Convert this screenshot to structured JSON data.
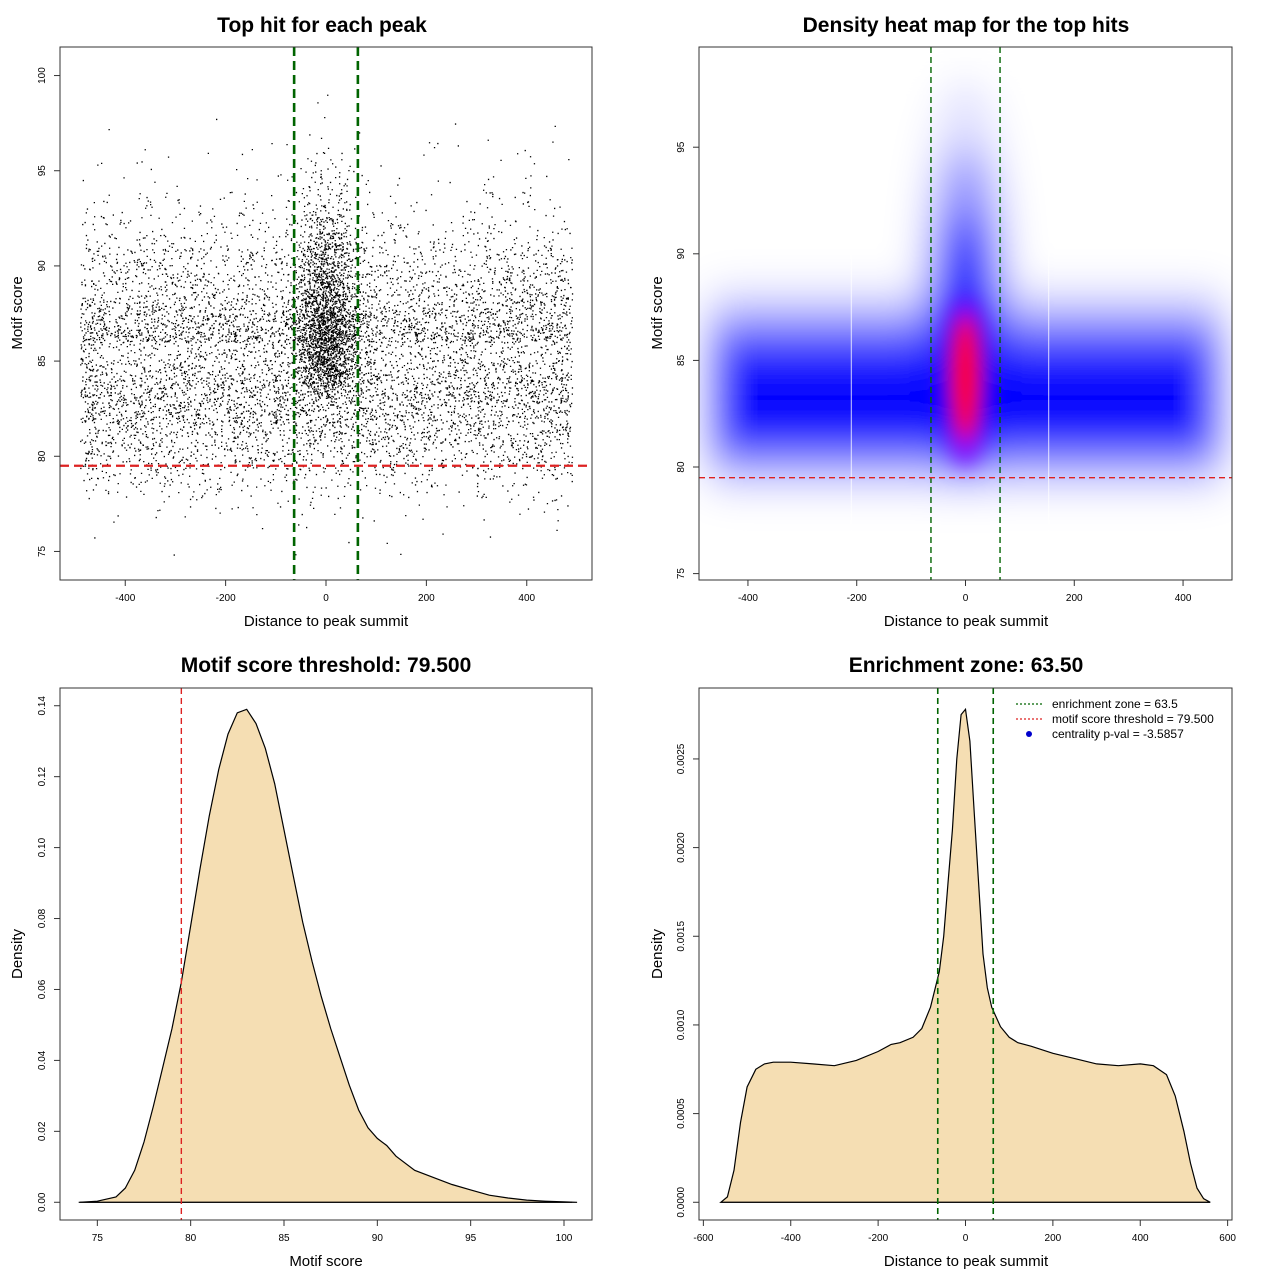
{
  "chart_data": [
    {
      "type": "scatter",
      "title": "Top hit for each peak",
      "xlabel": "Distance to peak summit",
      "ylabel": "Motif score",
      "xlim": [
        -530,
        530
      ],
      "ylim": [
        73.5,
        101.5
      ],
      "xticks": [
        -400,
        -200,
        0,
        200,
        400
      ],
      "yticks": [
        75,
        80,
        85,
        90,
        95,
        100
      ],
      "vlines": [
        -63.5,
        63.5
      ],
      "hline": 79.5,
      "points_description": "dense point cloud; background spread uniformly over -490..490 with scores mostly 77-89 (peak ~82-84); central enrichment near 0 with scores up to ~99.5"
    },
    {
      "type": "heatmap",
      "title": "Density heat map for the top hits",
      "xlabel": "Distance to peak summit",
      "ylabel": "Motif score",
      "xlim": [
        -490,
        490
      ],
      "ylim": [
        74.7,
        99.7
      ],
      "xticks": [
        -400,
        -200,
        0,
        200,
        400
      ],
      "yticks": [
        75,
        80,
        85,
        90,
        95
      ],
      "vlines": [
        -63.5,
        63.5
      ],
      "hline": 79.5,
      "hotspot": {
        "x": 0,
        "y": 84
      }
    },
    {
      "type": "area",
      "title": "Motif score threshold: 79.500",
      "xlabel": "Motif score",
      "ylabel": "Density",
      "xlim": [
        73,
        101.5
      ],
      "ylim": [
        -0.005,
        0.145
      ],
      "xticks": [
        75,
        80,
        85,
        90,
        95,
        100
      ],
      "yticks": [
        0.0,
        0.02,
        0.04,
        0.06,
        0.08,
        0.1,
        0.12,
        0.14
      ],
      "ytick_labels": [
        "0.00",
        "0.02",
        "0.04",
        "0.06",
        "0.08",
        "0.10",
        "0.12",
        "0.14"
      ],
      "vline": 79.5,
      "x": [
        74,
        75,
        76,
        76.5,
        77,
        77.5,
        78,
        78.5,
        79,
        79.5,
        80,
        80.5,
        81,
        81.5,
        82,
        82.5,
        83,
        83.5,
        84,
        84.5,
        85,
        85.5,
        86,
        86.5,
        87,
        87.5,
        88,
        88.5,
        89,
        89.5,
        90,
        90.5,
        91,
        92,
        93,
        94,
        95,
        96,
        97,
        98,
        99,
        100,
        100.7
      ],
      "y": [
        0,
        0.0003,
        0.0015,
        0.004,
        0.009,
        0.017,
        0.027,
        0.038,
        0.049,
        0.062,
        0.078,
        0.094,
        0.109,
        0.122,
        0.132,
        0.138,
        0.139,
        0.135,
        0.128,
        0.118,
        0.105,
        0.092,
        0.079,
        0.068,
        0.058,
        0.049,
        0.041,
        0.033,
        0.026,
        0.021,
        0.018,
        0.016,
        0.013,
        0.009,
        0.007,
        0.005,
        0.0035,
        0.002,
        0.0012,
        0.0006,
        0.0003,
        0.0001,
        0
      ]
    },
    {
      "type": "area",
      "title": "Enrichment zone: 63.50",
      "xlabel": "Distance to peak summit",
      "ylabel": "Density",
      "xlim": [
        -610,
        610
      ],
      "ylim": [
        -0.0001,
        0.0029
      ],
      "xticks": [
        -600,
        -400,
        -200,
        0,
        200,
        400,
        600
      ],
      "yticks": [
        0,
        0.0005,
        0.001,
        0.0015,
        0.002,
        0.0025
      ],
      "ytick_labels": [
        "0.0000",
        "0.0005",
        "0.0010",
        "0.0015",
        "0.0020",
        "0.0025"
      ],
      "vlines": [
        -63.5,
        63.5
      ],
      "x": [
        -560,
        -545,
        -530,
        -515,
        -500,
        -480,
        -460,
        -440,
        -400,
        -350,
        -300,
        -250,
        -200,
        -170,
        -150,
        -120,
        -100,
        -80,
        -60,
        -50,
        -40,
        -30,
        -20,
        -10,
        0,
        10,
        20,
        30,
        40,
        50,
        60,
        80,
        100,
        120,
        150,
        200,
        250,
        300,
        350,
        400,
        430,
        460,
        480,
        500,
        515,
        530,
        545,
        560
      ],
      "y": [
        0,
        3e-05,
        0.00018,
        0.00045,
        0.00065,
        0.00075,
        0.00078,
        0.00079,
        0.00079,
        0.00078,
        0.00077,
        0.0008,
        0.00085,
        0.00089,
        0.0009,
        0.00093,
        0.00098,
        0.0011,
        0.0013,
        0.0015,
        0.0018,
        0.0021,
        0.0025,
        0.00275,
        0.00278,
        0.0026,
        0.0022,
        0.0018,
        0.0014,
        0.00121,
        0.0011,
        0.00099,
        0.00093,
        0.0009,
        0.00088,
        0.00084,
        0.00081,
        0.00078,
        0.00077,
        0.00078,
        0.00077,
        0.00072,
        0.0006,
        0.0004,
        0.00022,
        8e-05,
        2e-05,
        0
      ],
      "legend": [
        {
          "label": "enrichment zone = 63.5",
          "color": "#006400",
          "style": "dotted"
        },
        {
          "label": "motif score threshold = 79.500",
          "color": "#dd2222",
          "style": "dotted"
        },
        {
          "label": "centrality p-val = -3.5857",
          "color": "#0000cc",
          "style": "point"
        }
      ],
      "legend_position": "top-right"
    }
  ]
}
